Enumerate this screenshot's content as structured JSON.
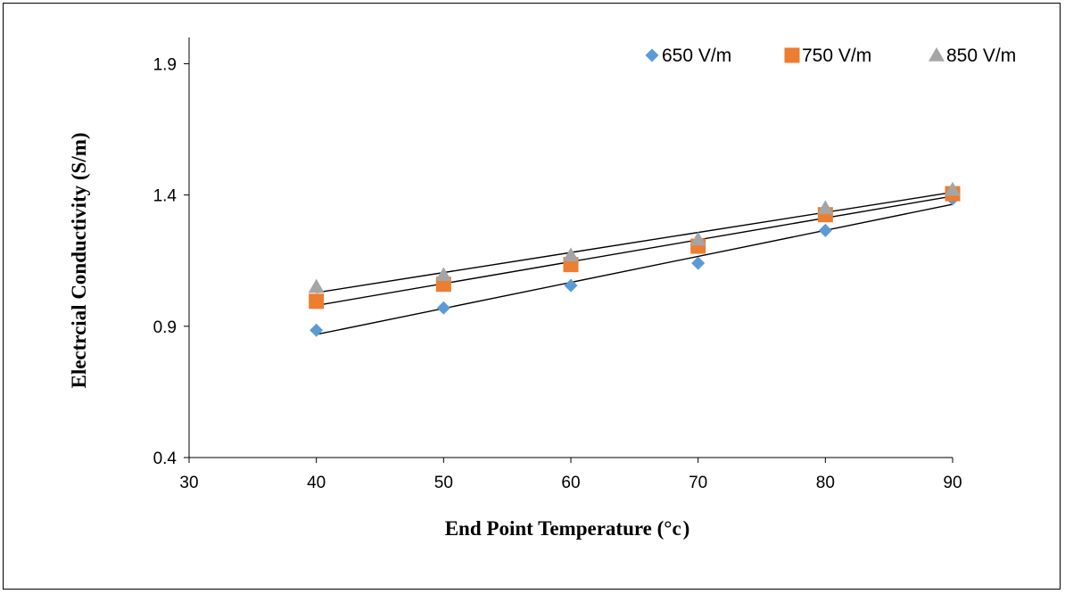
{
  "chart_data": {
    "type": "scatter",
    "title": "",
    "xlabel": "End Point Temperature (°c )",
    "ylabel": "Electrcial Conductivity (S/m)",
    "xlim": [
      30,
      90
    ],
    "ylim": [
      0.4,
      2.0
    ],
    "x_ticks": [
      "30",
      "40",
      "50",
      "60",
      "70",
      "80",
      "90"
    ],
    "y_ticks": [
      "0.4",
      "0.9",
      "1.4",
      "1.9"
    ],
    "legend_position": "top-right",
    "trendlines": "linear",
    "series": [
      {
        "name": "650 V/m",
        "marker": "diamond",
        "color": "#5b9bd5",
        "x": [
          40,
          50,
          60,
          70,
          80,
          90
        ],
        "y": [
          0.885,
          0.97,
          1.055,
          1.14,
          1.265,
          1.385
        ]
      },
      {
        "name": "750 V/m",
        "marker": "square",
        "color": "#ed7d31",
        "x": [
          40,
          50,
          60,
          70,
          80,
          90
        ],
        "y": [
          0.995,
          1.06,
          1.135,
          1.205,
          1.325,
          1.405
        ]
      },
      {
        "name": "850 V/m",
        "marker": "triangle",
        "color": "#a5a5a5",
        "x": [
          40,
          50,
          60,
          70,
          80,
          90
        ],
        "y": [
          1.05,
          1.095,
          1.17,
          1.23,
          1.35,
          1.42
        ]
      }
    ]
  }
}
